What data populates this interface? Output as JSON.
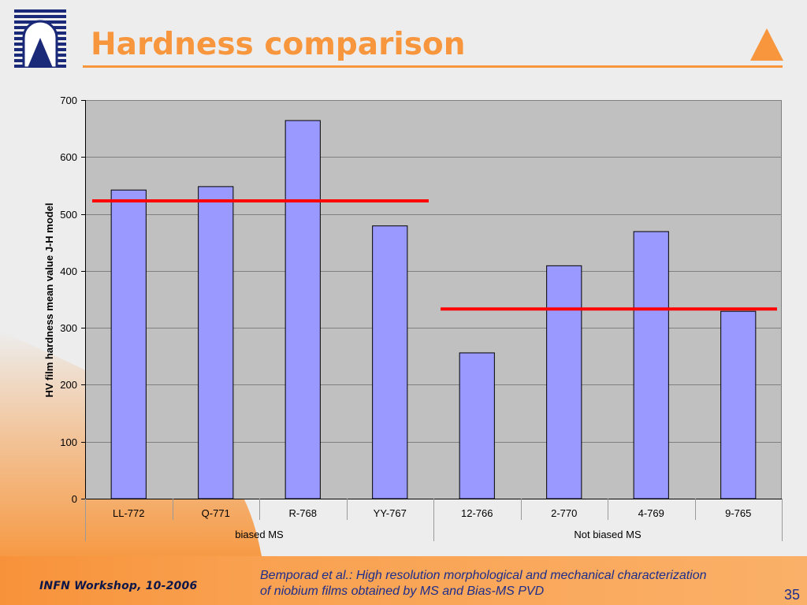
{
  "slide": {
    "title": "Hardness comparison",
    "footer_left": "INFN Workshop, 10-2006",
    "citation_line1": "Bemporad et al.: High resolution morphological and mechanical characterization",
    "citation_line2": "of niobium films obtained by MS and Bias-MS PVD",
    "page_number": "35"
  },
  "icons": {
    "logo": "infn-logo",
    "corner": "orange-triangle-icon"
  },
  "colors": {
    "accent": "#f7963c",
    "navy": "#1b2a78",
    "text_blue": "#1d2d8c",
    "bar": "#9999ff",
    "plot_bg": "#c0c0c0",
    "reference_line": "#ff0000"
  },
  "chart_data": {
    "type": "bar",
    "ylabel": "HV film hardness mean value J-H model",
    "ylim": [
      0,
      700
    ],
    "yticks": [
      0,
      100,
      200,
      300,
      400,
      500,
      600,
      700
    ],
    "categories": [
      "LL-772",
      "Q-771",
      "R-768",
      "YY-767",
      "12-766",
      "2-770",
      "4-769",
      "9-765"
    ],
    "values": [
      542,
      548,
      664,
      479,
      256,
      409,
      469,
      329
    ],
    "groups": [
      {
        "label": "biased MS",
        "first": 0,
        "last": 3
      },
      {
        "label": "Not biased MS",
        "first": 4,
        "last": 7
      }
    ],
    "reference_lines": [
      {
        "value": 523,
        "group": 0
      },
      {
        "value": 333,
        "group": 1
      }
    ],
    "grid": true,
    "legend": false
  }
}
